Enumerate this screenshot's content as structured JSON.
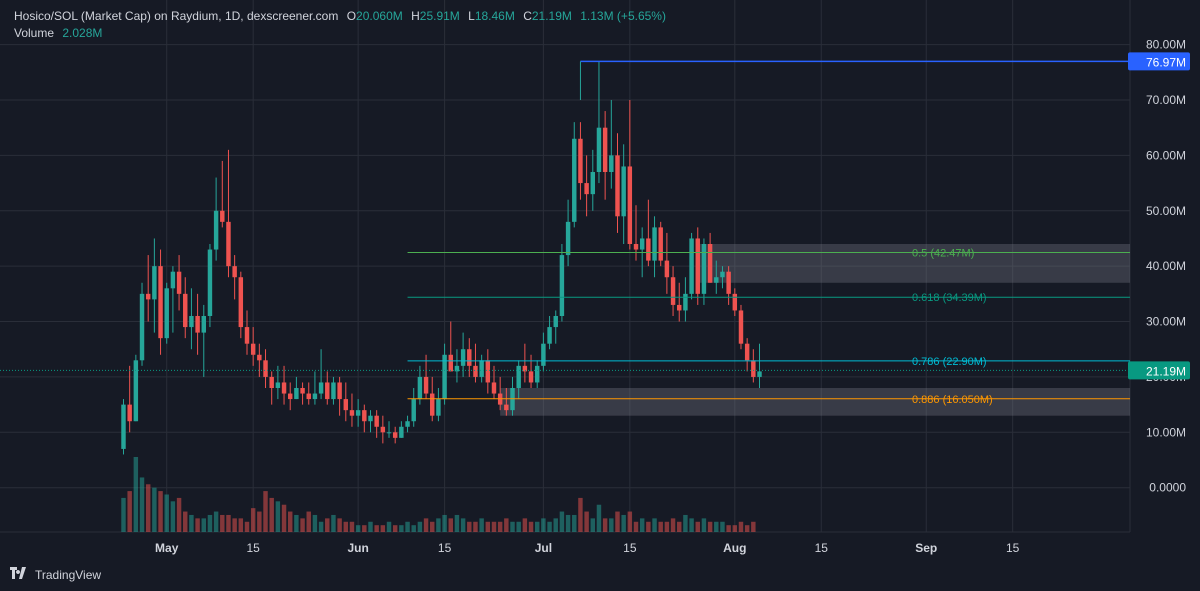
{
  "legend": {
    "symbol": "Hosico/SOL (Market Cap) on Raydium, 1D, dexscreener.com",
    "o_label": "O",
    "o_value": "20.060M",
    "h_label": "H",
    "h_value": "25.91M",
    "l_label": "L",
    "l_value": "18.46M",
    "c_label": "C",
    "c_value": "21.19M",
    "change": "1.13M (+5.65%)",
    "volume_label": "Volume",
    "volume_value": "2.028M"
  },
  "footer": {
    "brand": "TradingView",
    "logo_icon": "tradingview-logo-icon"
  },
  "colors": {
    "background": "#161a25",
    "up": "#26a69a",
    "down": "#ef5350",
    "grid": "#2a2e39",
    "axis_text": "#d1d4dc"
  },
  "chart_data": {
    "type": "candlestick",
    "title": "Hosico/SOL (Market Cap) on Raydium, 1D, dexscreener.com",
    "y_unit": "M",
    "ylim": [
      -8,
      83
    ],
    "y_ticks": [
      {
        "value": 80,
        "label": "80.00M"
      },
      {
        "value": 70,
        "label": "70.00M"
      },
      {
        "value": 60,
        "label": "60.00M"
      },
      {
        "value": 50,
        "label": "50.00M"
      },
      {
        "value": 40,
        "label": "40.00M"
      },
      {
        "value": 30,
        "label": "30.00M"
      },
      {
        "value": 20,
        "label": "20.00M"
      },
      {
        "value": 10,
        "label": "10.00M"
      },
      {
        "value": 0,
        "label": "0.0000"
      }
    ],
    "x_ticks": [
      {
        "date": "2024-05-01",
        "label": "May",
        "bold": true
      },
      {
        "date": "2024-05-15",
        "label": "15",
        "bold": false
      },
      {
        "date": "2024-06-01",
        "label": "Jun",
        "bold": true
      },
      {
        "date": "2024-06-15",
        "label": "15",
        "bold": false
      },
      {
        "date": "2024-07-01",
        "label": "Jul",
        "bold": true
      },
      {
        "date": "2024-07-15",
        "label": "15",
        "bold": false
      },
      {
        "date": "2024-08-01",
        "label": "Aug",
        "bold": true
      },
      {
        "date": "2024-08-15",
        "label": "15",
        "bold": false
      },
      {
        "date": "2024-09-01",
        "label": "Sep",
        "bold": true
      },
      {
        "date": "2024-09-15",
        "label": "15",
        "bold": false
      }
    ],
    "x_range": [
      "2024-04-04",
      "2024-10-04"
    ],
    "grid": true,
    "first_candle_date": "2024-04-24",
    "candles": [
      [
        7,
        16,
        6,
        15
      ],
      [
        15,
        22,
        10,
        12
      ],
      [
        12,
        24,
        12,
        23
      ],
      [
        23,
        37,
        22,
        35
      ],
      [
        35,
        42,
        30,
        34
      ],
      [
        34,
        45,
        28,
        40
      ],
      [
        40,
        43,
        24,
        27
      ],
      [
        27,
        37,
        26,
        36
      ],
      [
        36,
        40,
        28,
        39
      ],
      [
        39,
        42,
        32,
        35
      ],
      [
        35,
        38,
        27,
        29
      ],
      [
        29,
        36,
        25,
        31
      ],
      [
        31,
        35,
        24,
        28
      ],
      [
        28,
        33,
        20,
        31
      ],
      [
        31,
        44,
        29,
        43
      ],
      [
        43,
        56,
        41,
        50
      ],
      [
        50,
        59,
        47,
        48
      ],
      [
        48,
        61,
        38,
        40
      ],
      [
        40,
        42,
        34,
        38
      ],
      [
        38,
        39,
        27,
        29
      ],
      [
        29,
        32,
        24,
        26
      ],
      [
        26,
        29,
        22,
        24
      ],
      [
        24,
        26,
        20,
        23
      ],
      [
        23,
        25,
        18,
        20
      ],
      [
        20,
        21,
        15,
        18
      ],
      [
        18,
        22,
        16,
        19
      ],
      [
        19,
        22,
        15,
        17
      ],
      [
        17,
        19,
        14,
        16
      ],
      [
        16,
        20,
        16,
        18
      ],
      [
        18,
        19,
        15,
        17
      ],
      [
        17,
        19,
        15,
        16
      ],
      [
        16,
        21,
        15,
        17
      ],
      [
        17,
        25,
        16,
        19
      ],
      [
        19,
        21,
        15,
        16
      ],
      [
        16,
        20,
        15,
        19
      ],
      [
        19,
        20,
        13,
        16
      ],
      [
        16,
        19,
        12,
        14
      ],
      [
        14,
        17,
        11,
        13
      ],
      [
        13,
        16,
        11,
        14
      ],
      [
        14,
        15,
        10,
        12
      ],
      [
        12,
        14,
        10,
        13
      ],
      [
        13,
        14,
        9,
        11
      ],
      [
        11,
        13,
        8,
        10
      ],
      [
        10,
        12,
        9,
        10
      ],
      [
        10,
        11,
        8,
        9
      ],
      [
        9,
        12,
        9,
        11
      ],
      [
        11,
        13,
        10,
        12
      ],
      [
        12,
        18,
        11,
        16
      ],
      [
        16,
        22,
        15,
        20
      ],
      [
        20,
        24,
        16,
        17
      ],
      [
        17,
        20,
        12,
        13
      ],
      [
        13,
        18,
        12,
        16
      ],
      [
        16,
        26,
        15,
        24
      ],
      [
        24,
        30,
        21,
        21
      ],
      [
        21,
        25,
        19,
        22
      ],
      [
        22,
        28,
        20,
        25
      ],
      [
        25,
        27,
        20,
        22
      ],
      [
        22,
        26,
        19,
        20
      ],
      [
        20,
        24,
        19,
        23
      ],
      [
        23,
        25,
        17,
        19
      ],
      [
        19,
        22,
        16,
        17
      ],
      [
        17,
        20,
        14,
        15
      ],
      [
        15,
        18,
        13,
        14
      ],
      [
        14,
        20,
        13,
        18
      ],
      [
        18,
        23,
        16,
        22
      ],
      [
        22,
        26,
        19,
        21
      ],
      [
        21,
        24,
        18,
        19
      ],
      [
        19,
        23,
        18,
        22
      ],
      [
        22,
        28,
        21,
        26
      ],
      [
        26,
        31,
        25,
        29
      ],
      [
        29,
        32,
        26,
        31
      ],
      [
        31,
        44,
        30,
        42
      ],
      [
        42,
        52,
        40,
        48
      ],
      [
        48,
        66,
        47,
        63
      ],
      [
        63,
        66,
        52,
        55
      ],
      [
        55,
        60,
        49,
        53
      ],
      [
        53,
        61,
        50,
        57
      ],
      [
        57,
        77,
        55,
        65
      ],
      [
        65,
        68,
        52,
        57
      ],
      [
        57,
        70,
        54,
        60
      ],
      [
        60,
        64,
        46,
        49
      ],
      [
        49,
        62,
        44,
        58
      ],
      [
        58,
        70,
        43,
        44
      ],
      [
        44,
        51,
        41,
        43
      ],
      [
        43,
        47,
        38,
        45
      ],
      [
        45,
        52,
        40,
        41
      ],
      [
        41,
        49,
        38,
        47
      ],
      [
        47,
        48,
        40,
        41
      ],
      [
        41,
        46,
        35,
        38
      ],
      [
        38,
        40,
        31,
        33
      ],
      [
        33,
        37,
        30,
        32
      ],
      [
        32,
        38,
        30,
        35
      ],
      [
        35,
        46,
        34,
        45
      ],
      [
        45,
        47,
        33,
        35
      ],
      [
        35,
        45,
        33,
        44
      ],
      [
        44,
        46,
        37,
        37
      ],
      [
        37,
        41,
        35,
        38
      ],
      [
        38,
        40,
        36,
        39
      ],
      [
        39,
        40,
        33,
        35
      ],
      [
        35,
        36,
        31,
        32
      ],
      [
        32,
        33,
        25,
        26
      ],
      [
        26,
        27,
        21,
        23
      ],
      [
        23,
        25,
        19,
        20
      ],
      [
        20,
        26,
        18,
        21
      ]
    ],
    "volumes": [
      10,
      12,
      22,
      16,
      14,
      13,
      12,
      11,
      9,
      10,
      6,
      5,
      4,
      4,
      5,
      6,
      5,
      5,
      4,
      4,
      3,
      7,
      6,
      12,
      10,
      9,
      8,
      6,
      5,
      4,
      6,
      5,
      3,
      4,
      5,
      4,
      3,
      3,
      2,
      2,
      3,
      2,
      2,
      3,
      2,
      2,
      3,
      2,
      3,
      4,
      3,
      4,
      5,
      4,
      5,
      4,
      3,
      3,
      4,
      3,
      3,
      3,
      4,
      3,
      3,
      4,
      3,
      3,
      4,
      3,
      4,
      6,
      5,
      5,
      10,
      6,
      4,
      8,
      4,
      4,
      6,
      5,
      6,
      3,
      4,
      3,
      4,
      3,
      3,
      4,
      3,
      5,
      4,
      3,
      4,
      3,
      3,
      3,
      2,
      2,
      3,
      2,
      3
    ],
    "volume_max": 22,
    "fib_levels": [
      {
        "label": "0.5 (42.47M)",
        "value": 42.47,
        "color": "#4caf50",
        "start": "2024-06-09"
      },
      {
        "label": "0.618 (34.39M)",
        "value": 34.39,
        "color": "#089981",
        "start": "2024-06-09"
      },
      {
        "label": "0.786 (22.90M)",
        "value": 22.9,
        "color": "#00bcd4",
        "start": "2024-06-09"
      },
      {
        "label": "0.886 (16.050M)",
        "value": 16.05,
        "color": "#ff9800",
        "start": "2024-06-09"
      }
    ],
    "high_line": {
      "value": 76.97,
      "label": "76.97M",
      "color": "#2962ff",
      "start": "2024-07-07"
    },
    "zones": [
      {
        "top": 44,
        "bottom": 37,
        "start": "2024-07-26"
      },
      {
        "top": 18,
        "bottom": 13,
        "start": "2024-06-24"
      }
    ],
    "last_price": {
      "value": 21.19,
      "label": "21.19M",
      "color": "#089981"
    }
  }
}
